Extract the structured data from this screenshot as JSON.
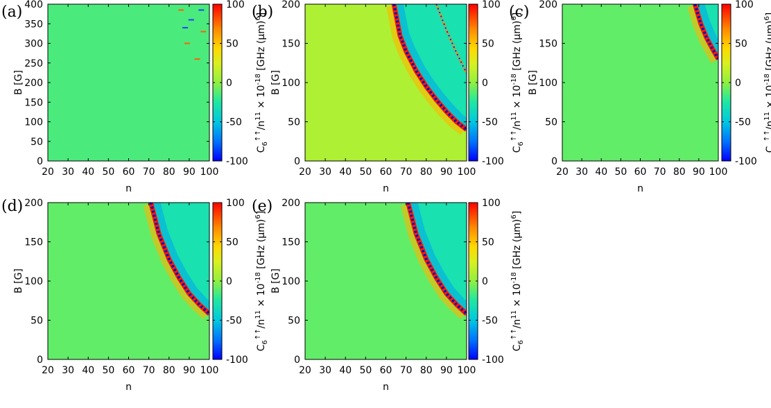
{
  "figure": {
    "description_free": true
  },
  "colorbar": {
    "ticks": [
      100,
      50,
      0,
      -50,
      -100
    ],
    "label_main": "C",
    "label_sub": "6",
    "label_sup": "↑↑",
    "label_rest": "/n",
    "label_exp": "11",
    "label_times": " × 10",
    "label_exp2": "-18",
    "label_units": " [GHz (µm)",
    "label_units_exp": "6",
    "label_close": "]",
    "colors": [
      "#0000ff",
      "#0080ff",
      "#00d0d0",
      "#20e0a0",
      "#80f040",
      "#c0f020",
      "#f0f000",
      "#ffb000",
      "#ff6000",
      "#ff0000"
    ]
  },
  "chart_data": [
    {
      "type": "heatmap",
      "panel": "(a)",
      "xlabel": "n",
      "ylabel": "B [G]",
      "x_ticks": [
        20,
        30,
        40,
        50,
        60,
        70,
        80,
        90,
        100
      ],
      "y_ticks": [
        0,
        50,
        100,
        150,
        200,
        250,
        300,
        350,
        400
      ],
      "xlim": [
        20,
        100
      ],
      "ylim": [
        0,
        400
      ],
      "zlim": [
        -100,
        100
      ],
      "background_value": -15,
      "resonances": [
        {
          "kind": "sparse-marks",
          "points": [
            [
              86,
              385
            ],
            [
              88,
              340
            ],
            [
              89,
              300
            ],
            [
              91,
              360
            ],
            [
              94,
              260
            ],
            [
              96,
              385
            ],
            [
              97,
              330
            ]
          ]
        }
      ]
    },
    {
      "type": "heatmap",
      "panel": "(b)",
      "xlabel": "n",
      "ylabel": "B [G]",
      "x_ticks": [
        20,
        30,
        40,
        50,
        60,
        70,
        80,
        90,
        100
      ],
      "y_ticks": [
        0,
        50,
        100,
        150,
        200
      ],
      "xlim": [
        20,
        100
      ],
      "ylim": [
        0,
        200
      ],
      "zlim": [
        -100,
        100
      ],
      "background_value": 10,
      "upper_region_value": -30,
      "resonances": [
        {
          "kind": "curve",
          "points": [
            [
              64,
              200
            ],
            [
              67,
              160
            ],
            [
              70,
              140
            ],
            [
              75,
              115
            ],
            [
              80,
              95
            ],
            [
              85,
              78
            ],
            [
              90,
              63
            ],
            [
              95,
              50
            ],
            [
              100,
              40
            ]
          ]
        },
        {
          "kind": "dashed-curve",
          "points": [
            [
              85,
              200
            ],
            [
              90,
              167
            ],
            [
              95,
              138
            ],
            [
              100,
              112
            ]
          ]
        }
      ]
    },
    {
      "type": "heatmap",
      "panel": "(c)",
      "xlabel": "n",
      "ylabel": "B [G]",
      "x_ticks": [
        20,
        30,
        40,
        50,
        60,
        70,
        80,
        90,
        100
      ],
      "y_ticks": [
        0,
        50,
        100,
        150,
        200
      ],
      "xlim": [
        20,
        100
      ],
      "ylim": [
        0,
        200
      ],
      "zlim": [
        -100,
        100
      ],
      "background_value": -10,
      "upper_region_value": -30,
      "resonances": [
        {
          "kind": "curve",
          "points": [
            [
              88,
              200
            ],
            [
              91,
              175
            ],
            [
              94,
              157
            ],
            [
              97,
              143
            ],
            [
              100,
              130
            ]
          ]
        }
      ]
    },
    {
      "type": "heatmap",
      "panel": "(d)",
      "xlabel": "n",
      "ylabel": "B [G]",
      "x_ticks": [
        20,
        30,
        40,
        50,
        60,
        70,
        80,
        90,
        100
      ],
      "y_ticks": [
        0,
        50,
        100,
        150,
        200
      ],
      "xlim": [
        20,
        100
      ],
      "ylim": [
        0,
        200
      ],
      "zlim": [
        -100,
        100
      ],
      "background_value": -10,
      "upper_region_value": -30,
      "resonances": [
        {
          "kind": "curve",
          "points": [
            [
              71,
              200
            ],
            [
              75,
              160
            ],
            [
              80,
              128
            ],
            [
              85,
              104
            ],
            [
              90,
              84
            ],
            [
              95,
              70
            ],
            [
              100,
              58
            ]
          ]
        }
      ]
    },
    {
      "type": "heatmap",
      "panel": "(e)",
      "xlabel": "n",
      "ylabel": "B [G]",
      "x_ticks": [
        20,
        30,
        40,
        50,
        60,
        70,
        80,
        90,
        100
      ],
      "y_ticks": [
        0,
        50,
        100,
        150,
        200
      ],
      "xlim": [
        20,
        100
      ],
      "ylim": [
        0,
        200
      ],
      "zlim": [
        -100,
        100
      ],
      "background_value": -10,
      "upper_region_value": -30,
      "resonances": [
        {
          "kind": "curve",
          "points": [
            [
              71,
              200
            ],
            [
              75,
              160
            ],
            [
              80,
              128
            ],
            [
              85,
              104
            ],
            [
              90,
              84
            ],
            [
              95,
              70
            ],
            [
              100,
              58
            ]
          ]
        }
      ]
    }
  ]
}
